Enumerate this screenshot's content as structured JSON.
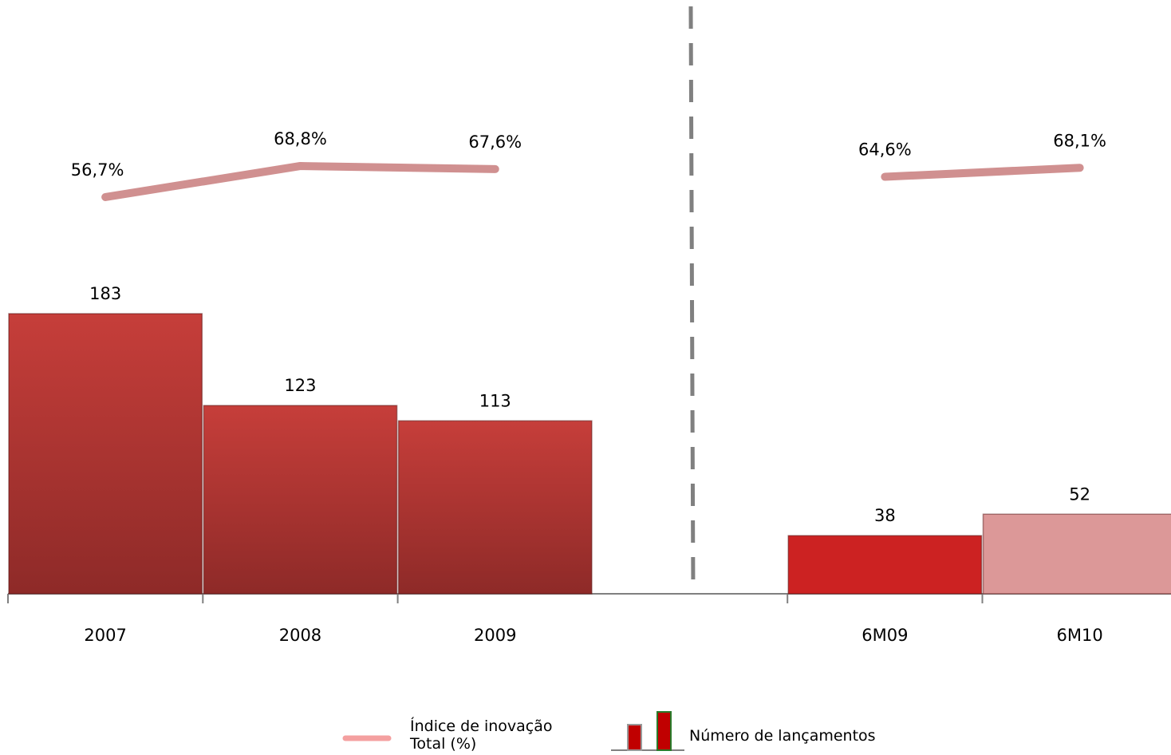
{
  "chart_data": {
    "type": "bar",
    "categories": [
      "2007",
      "2008",
      "2009",
      null,
      "6M09",
      "6M10"
    ],
    "series": [
      {
        "name": "Número de lançamentos",
        "type": "bar",
        "colors": [
          "#b83232",
          "#b83232",
          "#b83232",
          null,
          "#cc2222",
          "#dc9898"
        ],
        "values": [
          183,
          123,
          113,
          null,
          38,
          52
        ]
      },
      {
        "name": "Índice de inovação Total (%)",
        "type": "line",
        "axis": "y2",
        "color": "#d09090",
        "values": [
          56.7,
          68.8,
          67.6,
          null,
          64.6,
          68.1
        ],
        "value_labels": [
          "56,7%",
          "68,8%",
          "67,6%",
          null,
          "64,6%",
          "68,1%"
        ]
      }
    ]
  }
}
